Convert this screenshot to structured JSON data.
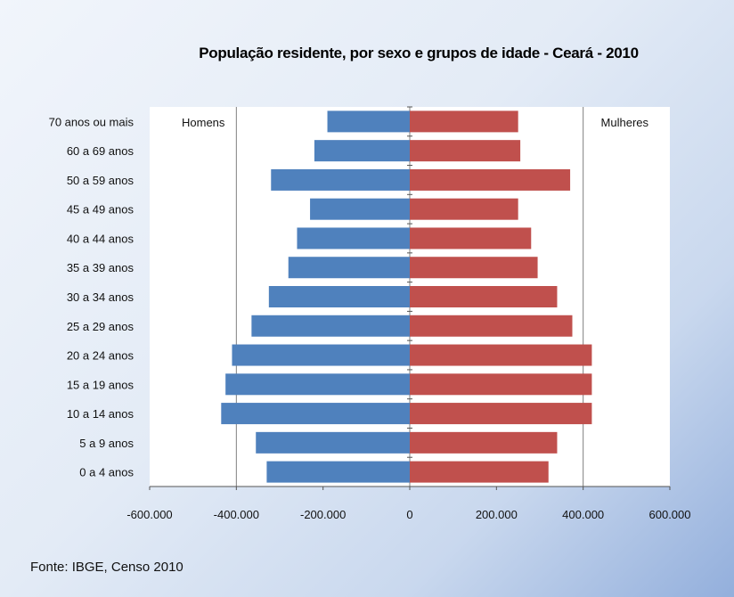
{
  "chart_data": {
    "type": "bar",
    "orientation": "horizontal",
    "layout": "population-pyramid",
    "title": "População residente, por sexo e grupos de idade - Ceará - 2010",
    "categories": [
      "70 anos ou mais",
      "60 a 69 anos",
      "50 a 59 anos",
      "45 a 49 anos",
      "40 a 44 anos",
      "35 a 39 anos",
      "30 a 34 anos",
      "25 a 29 anos",
      "20 a 24 anos",
      "15 a 19 anos",
      "10 a 14 anos",
      "5 a 9 anos",
      "0 a 4 anos"
    ],
    "series": [
      {
        "name": "Homens",
        "color": "#4f81bd",
        "values": [
          -190000,
          -220000,
          -320000,
          -230000,
          -260000,
          -280000,
          -325000,
          -365000,
          -410000,
          -425000,
          -435000,
          -355000,
          -330000
        ]
      },
      {
        "name": "Mulheres",
        "color": "#c0504d",
        "values": [
          250000,
          255000,
          370000,
          250000,
          280000,
          295000,
          340000,
          375000,
          420000,
          420000,
          420000,
          340000,
          320000
        ]
      }
    ],
    "xlim": [
      -600000,
      600000
    ],
    "xticks": [
      -600000,
      -400000,
      -200000,
      0,
      200000,
      400000,
      600000
    ],
    "xtick_labels": [
      "-600.000",
      "-400.000",
      "-200.000",
      "0",
      "200.000",
      "400.000",
      "600.000"
    ],
    "gridlines": [
      -400000,
      0,
      400000
    ],
    "grid": true,
    "legend": "inside-top"
  },
  "source": "Fonte: IBGE, Censo 2010"
}
